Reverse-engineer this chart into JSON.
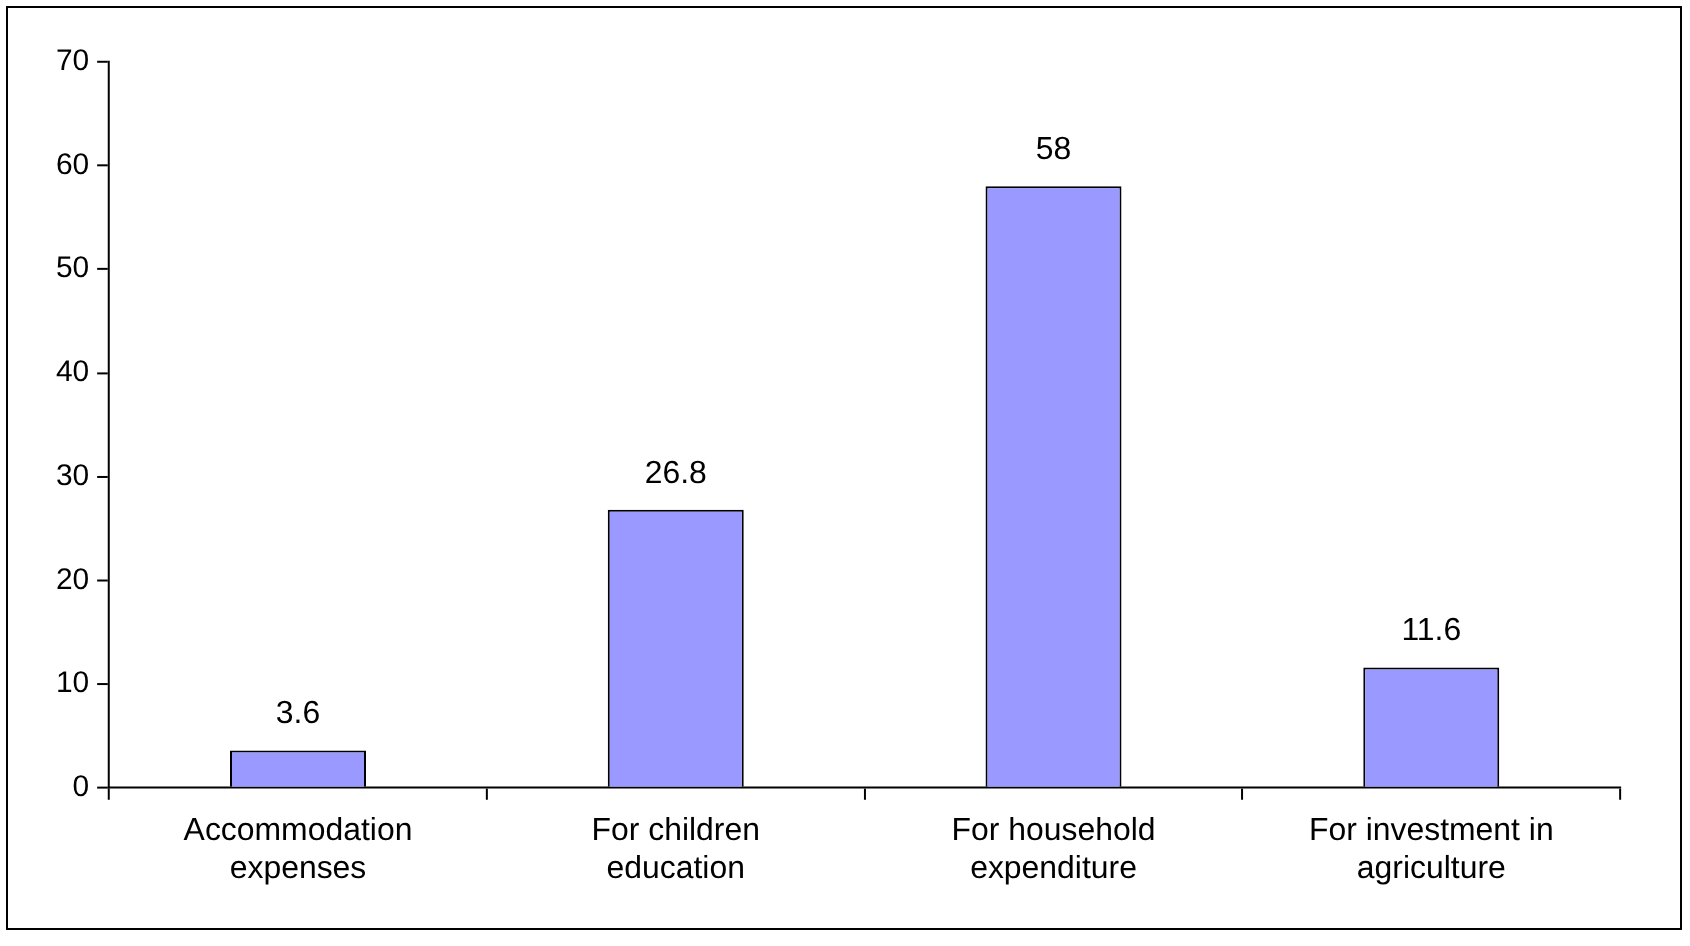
{
  "chart_data": {
    "type": "bar",
    "categories": [
      "Accommodation expenses",
      "For children education",
      "For household expenditure",
      "For investment in agriculture"
    ],
    "values": [
      3.6,
      26.8,
      58,
      11.6
    ],
    "color": "#9999ff",
    "ylim": [
      0,
      70
    ],
    "yticks": [
      0,
      10,
      20,
      30,
      40,
      50,
      60,
      70
    ],
    "grid": false,
    "legend": false,
    "data_labels": true
  }
}
